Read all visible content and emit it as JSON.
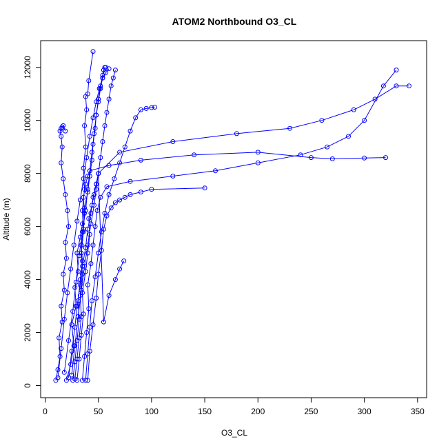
{
  "chart_data": {
    "type": "line",
    "title": "ATOM2 Northbound O3_CL",
    "xlabel": "O3_CL",
    "ylabel": "Altitude (m)",
    "xlim": [
      0,
      350
    ],
    "ylim": [
      0,
      12000
    ],
    "xticks": [
      "0",
      "50",
      "100",
      "150",
      "200",
      "250",
      "300",
      "350"
    ],
    "yticks": [
      "0",
      "2000",
      "4000",
      "6000",
      "8000",
      "10000",
      "12000"
    ],
    "grid": false,
    "legend": "none",
    "series_color": "#0000ff",
    "marker": "open-circle",
    "series": [
      {
        "x": [
          10,
          12,
          14,
          13,
          16,
          15,
          18,
          17,
          20,
          19,
          22,
          21,
          19,
          17,
          15,
          16,
          15,
          14,
          15,
          16,
          17,
          19
        ],
        "y": [
          200,
          600,
          1100,
          1800,
          2400,
          3000,
          3600,
          4200,
          4800,
          5400,
          6000,
          6600,
          7200,
          7800,
          8400,
          9000,
          9400,
          9600,
          9700,
          9750,
          9800,
          9600
        ]
      },
      {
        "x": [
          20,
          24,
          27,
          25,
          29,
          28,
          31,
          30,
          33,
          35,
          37,
          40,
          42,
          44,
          45,
          47,
          48,
          50,
          52,
          54,
          55,
          57
        ],
        "y": [
          200,
          800,
          1500,
          2300,
          3000,
          3700,
          4300,
          5000,
          5600,
          6100,
          6700,
          7300,
          7900,
          8500,
          9100,
          9700,
          10200,
          10700,
          11200,
          11600,
          11900,
          12000
        ]
      },
      {
        "x": [
          26,
          28,
          30,
          32,
          31,
          33,
          35,
          34,
          36,
          37,
          36,
          38,
          40,
          42,
          60,
          90,
          140,
          200,
          250,
          270,
          300,
          320
        ],
        "y": [
          200,
          900,
          1700,
          2500,
          3200,
          4000,
          4700,
          5300,
          5900,
          6500,
          7100,
          7600,
          7900,
          8100,
          8300,
          8500,
          8700,
          8800,
          8600,
          8550,
          8580,
          8600
        ]
      },
      {
        "x": [
          30,
          32,
          34,
          36,
          35,
          38,
          40,
          42,
          41,
          44,
          46,
          48,
          50,
          70,
          120,
          180,
          230,
          260,
          290,
          310,
          330,
          342
        ],
        "y": [
          200,
          1000,
          1900,
          2700,
          3500,
          4300,
          5000,
          5700,
          6300,
          6800,
          7200,
          7600,
          8000,
          8800,
          9200,
          9500,
          9700,
          10000,
          10400,
          10800,
          11300,
          11300
        ]
      },
      {
        "x": [
          35,
          37,
          39,
          41,
          40,
          43,
          45,
          47,
          49,
          52,
          58,
          80,
          120,
          160,
          200,
          240,
          265,
          285,
          300,
          318,
          330
        ],
        "y": [
          200,
          1100,
          2000,
          2900,
          3800,
          4600,
          5300,
          6000,
          6600,
          7100,
          7500,
          7700,
          7900,
          8100,
          8400,
          8700,
          9000,
          9400,
          10000,
          11300,
          11900
        ]
      },
      {
        "x": [
          38,
          40,
          42,
          44,
          47,
          50,
          53,
          56,
          60,
          65,
          70,
          75,
          80,
          85,
          90,
          95,
          100,
          103
        ],
        "y": [
          200,
          1200,
          2200,
          3200,
          4100,
          5000,
          5800,
          6500,
          7200,
          7800,
          8400,
          9000,
          9600,
          10100,
          10400,
          10450,
          10480,
          10500
        ]
      },
      {
        "x": [
          40,
          42,
          45,
          48,
          50,
          53,
          55,
          58,
          62,
          66,
          70,
          75,
          80,
          90,
          100,
          150
        ],
        "y": [
          200,
          1300,
          2300,
          3300,
          4200,
          5100,
          5900,
          6400,
          6700,
          6900,
          7000,
          7100,
          7200,
          7300,
          7400,
          7450
        ]
      },
      {
        "x": [
          22,
          25,
          28,
          30,
          33,
          35,
          38,
          40,
          43,
          45,
          48,
          50,
          55,
          60,
          66,
          70,
          74
        ],
        "y": [
          300,
          1300,
          2200,
          3000,
          3800,
          4500,
          5200,
          5900,
          6500,
          7100,
          7600,
          8000,
          2400,
          3400,
          4000,
          4400,
          4700
        ]
      },
      {
        "x": [
          25,
          28,
          31,
          34,
          37,
          40,
          43,
          46,
          48,
          50,
          52,
          54,
          56,
          58,
          60,
          62,
          64,
          66
        ],
        "y": [
          400,
          1500,
          2600,
          3600,
          4500,
          5300,
          6100,
          6800,
          7400,
          8000,
          8600,
          9200,
          9800,
          10300,
          10800,
          11300,
          11600,
          11900
        ]
      },
      {
        "x": [
          12,
          15,
          18,
          21,
          24,
          27,
          30,
          33,
          36,
          39,
          42,
          45,
          48,
          51,
          54,
          57,
          60
        ],
        "y": [
          300,
          1400,
          2500,
          3500,
          4400,
          5300,
          6200,
          7000,
          7800,
          8600,
          9400,
          10100,
          10700,
          11200,
          11600,
          11800,
          11950
        ]
      },
      {
        "x": [
          28,
          30,
          32,
          34,
          33,
          35,
          34,
          36,
          35,
          37,
          36,
          38,
          37,
          39,
          38,
          40,
          41,
          45
        ],
        "y": [
          250,
          1000,
          1800,
          2600,
          3400,
          4200,
          5000,
          5800,
          6600,
          7400,
          8200,
          9000,
          9800,
          10400,
          10900,
          11000,
          11500,
          12600
        ]
      },
      {
        "x": [
          18,
          22,
          26,
          29,
          32,
          35,
          38,
          40,
          42,
          44,
          46,
          48,
          50,
          52,
          54,
          56
        ],
        "y": [
          500,
          1700,
          2800,
          3900,
          4900,
          5800,
          6600,
          7400,
          8100,
          8800,
          9500,
          10200,
          10800,
          11300,
          11700,
          12000
        ]
      }
    ]
  }
}
